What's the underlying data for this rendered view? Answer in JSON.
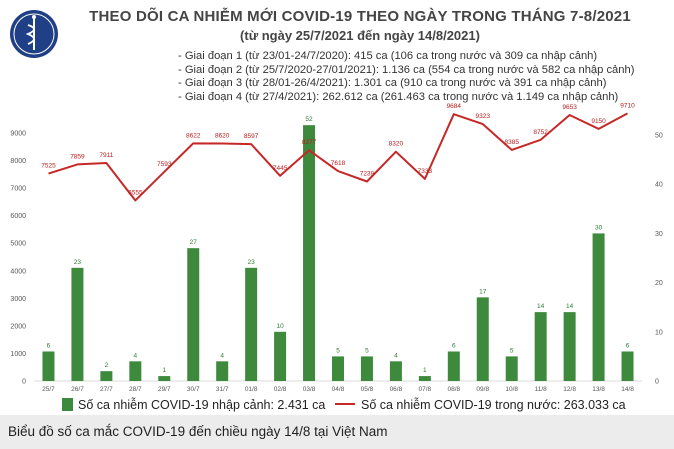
{
  "title": "THEO DÕI CA NHIỄM MỚI COVID-19 THEO NGÀY TRONG THÁNG 7-8/2021",
  "subtitle": "(từ ngày 25/7/2021 đến ngày 14/8/2021)",
  "logo_text": "BỘ Y TẾ · MINISTRY OF HEALTH",
  "phases": [
    "Giai đoạn 1 (từ 23/01-24/7/2020): 415 ca (106 ca trong nước và 309 ca nhập cảnh)",
    "Giai đoạn 2 (từ 25/7/2020-27/01/2021): 1.136 ca (554 ca trong nước và 582 ca nhập cảnh)",
    "Giai đoạn 3 (từ 28/01-26/4/2021): 1.301 ca (910 ca trong nước và 391 ca nhập cảnh)",
    "Giai đoạn 4 (từ 27/4/2021): 262.612 ca (261.463 ca trong nước và 1.149 ca nhập cảnh)"
  ],
  "legend": {
    "bars": "Số ca nhiễm COVID-19 nhập cảnh: 2.431 ca",
    "line": "Số ca nhiễm COVID-19 trong nước: 263.033 ca"
  },
  "caption": "Biểu đồ số ca mắc COVID-19 đến chiều ngày 14/8 tại Việt Nam",
  "colors": {
    "bar": "#3d8a3d",
    "line": "#c62828",
    "bar_label": "#2e7d32",
    "line_label": "#b71c1c"
  },
  "chart_data": {
    "type": "bar+line",
    "categories": [
      "25/7",
      "26/7",
      "27/7",
      "28/7",
      "29/7",
      "30/7",
      "31/7",
      "01/8",
      "02/8",
      "03/8",
      "04/8",
      "05/8",
      "06/8",
      "07/8",
      "08/8",
      "09/8",
      "10/8",
      "11/8",
      "12/8",
      "13/8",
      "14/8"
    ],
    "series": [
      {
        "name": "Số ca nhiễm COVID-19 nhập cảnh: 2.431 ca",
        "type": "bar",
        "axis": "right",
        "values": [
          6,
          23,
          2,
          4,
          1,
          27,
          4,
          23,
          10,
          52,
          5,
          5,
          4,
          1,
          6,
          17,
          5,
          14,
          14,
          30,
          6
        ]
      },
      {
        "name": "Số ca nhiễm COVID-19 trong nước: 263.033 ca",
        "type": "line",
        "axis": "left",
        "values": [
          7525,
          7859,
          7911,
          6555,
          7593,
          8622,
          8620,
          8597,
          7445,
          8377,
          7618,
          7239,
          8320,
          7333,
          9684,
          9323,
          8385,
          8752,
          9653,
          9150,
          9710
        ]
      }
    ],
    "left_axis": {
      "ylim": [
        0,
        9000
      ],
      "ticks": [
        0,
        1000,
        2000,
        3000,
        4000,
        5000,
        6000,
        7000,
        8000,
        9000
      ]
    },
    "right_axis": {
      "ylim": [
        0,
        50
      ],
      "ticks": [
        0,
        10,
        20,
        30,
        40,
        50
      ]
    },
    "legend_position": "bottom"
  }
}
